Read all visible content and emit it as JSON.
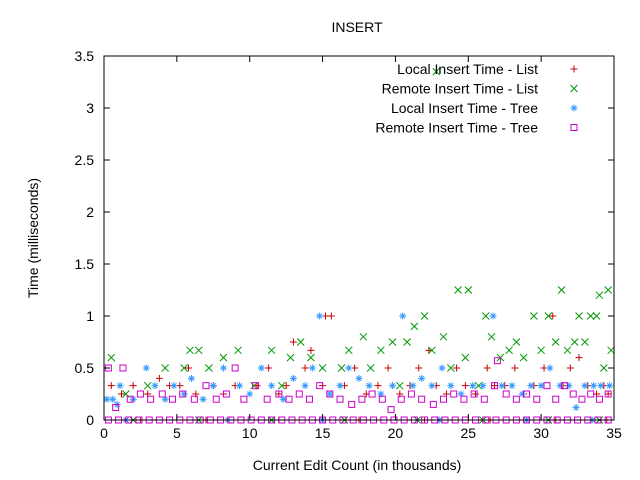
{
  "chart_data": {
    "type": "scatter",
    "title": "INSERT",
    "xlabel": "Current Edit Count (in thousands)",
    "ylabel": "Time (milliseconds)",
    "xlim": [
      0,
      35
    ],
    "ylim": [
      0,
      3.5
    ],
    "x_ticks": [
      "0",
      "5",
      "10",
      "15",
      "20",
      "25",
      "30",
      "35"
    ],
    "y_ticks": [
      "0",
      "0.5",
      "1",
      "1.5",
      "2",
      "2.5",
      "3",
      "3.5"
    ],
    "grid": false,
    "legend_position": "top-right",
    "series": [
      {
        "name": "Local Insert Time - List",
        "marker": "plus",
        "color": "#cc0000",
        "points": [
          [
            0.5,
            0.33
          ],
          [
            1.2,
            0.25
          ],
          [
            2.0,
            0.33
          ],
          [
            3.0,
            0.25
          ],
          [
            3.8,
            0.4
          ],
          [
            4.5,
            0.33
          ],
          [
            5.2,
            0.33
          ],
          [
            5.8,
            0.5
          ],
          [
            6.3,
            0.25
          ],
          [
            7.5,
            0.33
          ],
          [
            8.2,
            0.25
          ],
          [
            9.0,
            0.33
          ],
          [
            10.5,
            0.33
          ],
          [
            11.3,
            0.5
          ],
          [
            12.0,
            0.25
          ],
          [
            12.5,
            0.33
          ],
          [
            13.0,
            0.75
          ],
          [
            13.8,
            0.5
          ],
          [
            14.2,
            0.67
          ],
          [
            15.0,
            0.33
          ],
          [
            15.2,
            1.0
          ],
          [
            15.6,
            1.0
          ],
          [
            16.5,
            0.33
          ],
          [
            17.2,
            0.5
          ],
          [
            18.0,
            0.25
          ],
          [
            18.8,
            0.33
          ],
          [
            19.5,
            0.5
          ],
          [
            20.3,
            0.25
          ],
          [
            21.0,
            0.33
          ],
          [
            21.6,
            0.5
          ],
          [
            22.3,
            0.67
          ],
          [
            22.8,
            0.33
          ],
          [
            23.5,
            0.25
          ],
          [
            24.2,
            0.5
          ],
          [
            24.8,
            0.33
          ],
          [
            25.5,
            0.25
          ],
          [
            26.3,
            0.5
          ],
          [
            26.8,
            0.33
          ],
          [
            27.5,
            0.33
          ],
          [
            28.2,
            0.5
          ],
          [
            28.8,
            0.25
          ],
          [
            29.5,
            0.33
          ],
          [
            30.2,
            0.5
          ],
          [
            30.8,
            1.0
          ],
          [
            31.5,
            0.33
          ],
          [
            32.0,
            0.5
          ],
          [
            32.6,
            0.6
          ],
          [
            33.2,
            0.33
          ],
          [
            33.8,
            0.25
          ],
          [
            34.3,
            0.33
          ],
          [
            34.6,
            0.25
          ],
          [
            2.5,
            0.0
          ],
          [
            7.0,
            0.0
          ],
          [
            12.0,
            0.0
          ],
          [
            17.5,
            0.0
          ],
          [
            22.0,
            0.0
          ],
          [
            26.5,
            0.0
          ],
          [
            31.0,
            0.0
          ],
          [
            34.5,
            0.0
          ]
        ]
      },
      {
        "name": "Remote Insert Time - List",
        "marker": "cross",
        "color": "#009900",
        "points": [
          [
            0.5,
            0.6
          ],
          [
            1.5,
            0.25
          ],
          [
            3.0,
            0.33
          ],
          [
            4.2,
            0.5
          ],
          [
            5.5,
            0.5
          ],
          [
            5.9,
            0.67
          ],
          [
            6.5,
            0.67
          ],
          [
            7.2,
            0.5
          ],
          [
            8.2,
            0.6
          ],
          [
            9.2,
            0.67
          ],
          [
            10.3,
            0.33
          ],
          [
            11.5,
            0.67
          ],
          [
            12.2,
            0.33
          ],
          [
            12.8,
            0.6
          ],
          [
            13.5,
            0.75
          ],
          [
            14.2,
            0.6
          ],
          [
            15.0,
            0.5
          ],
          [
            16.3,
            0.5
          ],
          [
            16.8,
            0.67
          ],
          [
            17.8,
            0.8
          ],
          [
            18.3,
            0.5
          ],
          [
            19.0,
            0.67
          ],
          [
            19.8,
            0.75
          ],
          [
            20.3,
            0.33
          ],
          [
            20.8,
            0.75
          ],
          [
            21.3,
            0.9
          ],
          [
            22.0,
            1.0
          ],
          [
            22.5,
            0.67
          ],
          [
            22.8,
            3.35
          ],
          [
            23.3,
            0.8
          ],
          [
            23.8,
            0.5
          ],
          [
            24.3,
            1.25
          ],
          [
            24.8,
            0.6
          ],
          [
            25.0,
            1.25
          ],
          [
            25.7,
            0.33
          ],
          [
            26.2,
            1.0
          ],
          [
            26.6,
            0.8
          ],
          [
            27.2,
            0.6
          ],
          [
            27.8,
            0.67
          ],
          [
            28.3,
            0.75
          ],
          [
            28.8,
            0.6
          ],
          [
            29.5,
            1.0
          ],
          [
            30.0,
            0.67
          ],
          [
            30.5,
            1.0
          ],
          [
            31.0,
            0.75
          ],
          [
            31.4,
            1.25
          ],
          [
            31.8,
            0.67
          ],
          [
            32.3,
            0.75
          ],
          [
            32.6,
            1.0
          ],
          [
            33.0,
            0.75
          ],
          [
            33.4,
            1.0
          ],
          [
            33.8,
            1.0
          ],
          [
            34.0,
            1.2
          ],
          [
            34.3,
            0.5
          ],
          [
            34.6,
            1.25
          ],
          [
            34.8,
            0.67
          ],
          [
            2.0,
            0.0
          ],
          [
            6.5,
            0.0
          ],
          [
            11.5,
            0.0
          ],
          [
            16.5,
            0.0
          ],
          [
            21.5,
            0.0
          ],
          [
            26.0,
            0.0
          ],
          [
            30.5,
            0.0
          ],
          [
            34.0,
            0.0
          ]
        ]
      },
      {
        "name": "Local Insert Time - Tree",
        "marker": "star",
        "color": "#3399ff",
        "points": [
          [
            0.2,
            0.2
          ],
          [
            0.6,
            0.2
          ],
          [
            0.9,
            0.15
          ],
          [
            1.1,
            0.33
          ],
          [
            2.0,
            0.2
          ],
          [
            2.9,
            0.5
          ],
          [
            3.5,
            0.33
          ],
          [
            4.2,
            0.2
          ],
          [
            4.8,
            0.33
          ],
          [
            5.5,
            0.25
          ],
          [
            6.0,
            0.4
          ],
          [
            6.8,
            0.2
          ],
          [
            7.5,
            0.33
          ],
          [
            8.2,
            0.5
          ],
          [
            9.3,
            0.33
          ],
          [
            10.0,
            0.25
          ],
          [
            10.8,
            0.5
          ],
          [
            11.5,
            0.33
          ],
          [
            12.3,
            0.2
          ],
          [
            13.0,
            0.4
          ],
          [
            13.8,
            0.33
          ],
          [
            14.3,
            0.5
          ],
          [
            14.8,
            1.0
          ],
          [
            15.5,
            0.25
          ],
          [
            16.2,
            0.33
          ],
          [
            16.8,
            0.5
          ],
          [
            17.5,
            0.4
          ],
          [
            18.2,
            0.33
          ],
          [
            19.0,
            0.25
          ],
          [
            19.8,
            0.33
          ],
          [
            20.5,
            1.0
          ],
          [
            21.2,
            0.33
          ],
          [
            21.8,
            0.4
          ],
          [
            22.5,
            0.33
          ],
          [
            23.2,
            0.5
          ],
          [
            23.8,
            0.33
          ],
          [
            24.5,
            0.25
          ],
          [
            25.3,
            0.33
          ],
          [
            26.0,
            0.33
          ],
          [
            26.7,
            1.0
          ],
          [
            27.3,
            0.33
          ],
          [
            28.0,
            0.33
          ],
          [
            28.7,
            0.25
          ],
          [
            29.3,
            0.33
          ],
          [
            30.0,
            0.33
          ],
          [
            30.6,
            0.5
          ],
          [
            31.3,
            0.33
          ],
          [
            31.9,
            0.33
          ],
          [
            32.4,
            0.12
          ],
          [
            33.0,
            0.33
          ],
          [
            33.6,
            0.33
          ],
          [
            34.1,
            0.33
          ],
          [
            34.7,
            0.33
          ],
          [
            1.5,
            0.0
          ],
          [
            8.5,
            0.0
          ],
          [
            15.0,
            0.0
          ],
          [
            23.0,
            0.0
          ],
          [
            29.0,
            0.0
          ],
          [
            33.5,
            0.0
          ]
        ]
      },
      {
        "name": "Remote Insert Time - Tree",
        "marker": "square",
        "color": "#cc00cc",
        "points": [
          [
            0.3,
            0.5
          ],
          [
            0.8,
            0.12
          ],
          [
            1.3,
            0.5
          ],
          [
            1.8,
            0.2
          ],
          [
            2.5,
            0.25
          ],
          [
            3.2,
            0.2
          ],
          [
            4.0,
            0.25
          ],
          [
            4.7,
            0.2
          ],
          [
            5.4,
            0.25
          ],
          [
            6.2,
            0.2
          ],
          [
            7.0,
            0.33
          ],
          [
            7.7,
            0.2
          ],
          [
            8.4,
            0.25
          ],
          [
            9.0,
            0.5
          ],
          [
            9.6,
            0.2
          ],
          [
            10.4,
            0.33
          ],
          [
            11.2,
            0.2
          ],
          [
            12.0,
            0.25
          ],
          [
            12.7,
            0.2
          ],
          [
            13.4,
            0.25
          ],
          [
            14.1,
            0.2
          ],
          [
            14.8,
            0.33
          ],
          [
            15.5,
            0.25
          ],
          [
            16.2,
            0.2
          ],
          [
            17.0,
            0.15
          ],
          [
            17.7,
            0.2
          ],
          [
            18.4,
            0.25
          ],
          [
            19.1,
            0.2
          ],
          [
            19.7,
            0.1
          ],
          [
            20.4,
            0.2
          ],
          [
            21.1,
            0.25
          ],
          [
            21.8,
            0.2
          ],
          [
            22.6,
            0.15
          ],
          [
            23.3,
            0.2
          ],
          [
            24.0,
            0.25
          ],
          [
            24.7,
            0.2
          ],
          [
            25.4,
            0.25
          ],
          [
            26.1,
            0.2
          ],
          [
            26.8,
            0.33
          ],
          [
            27.0,
            0.57
          ],
          [
            27.6,
            0.25
          ],
          [
            28.3,
            0.2
          ],
          [
            29.0,
            0.25
          ],
          [
            29.7,
            0.2
          ],
          [
            30.4,
            0.33
          ],
          [
            31.0,
            0.2
          ],
          [
            31.6,
            0.33
          ],
          [
            32.2,
            0.25
          ],
          [
            32.8,
            0.2
          ],
          [
            33.4,
            0.25
          ],
          [
            34.0,
            0.2
          ],
          [
            34.6,
            0.25
          ],
          [
            0.3,
            0.0
          ],
          [
            1.0,
            0.0
          ],
          [
            1.7,
            0.0
          ],
          [
            2.4,
            0.0
          ],
          [
            3.1,
            0.0
          ],
          [
            3.8,
            0.0
          ],
          [
            4.5,
            0.0
          ],
          [
            5.2,
            0.0
          ],
          [
            5.9,
            0.0
          ],
          [
            6.6,
            0.0
          ],
          [
            7.3,
            0.0
          ],
          [
            8.0,
            0.0
          ],
          [
            8.7,
            0.0
          ],
          [
            9.4,
            0.0
          ],
          [
            10.1,
            0.0
          ],
          [
            10.8,
            0.0
          ],
          [
            11.5,
            0.0
          ],
          [
            12.2,
            0.0
          ],
          [
            12.9,
            0.0
          ],
          [
            13.6,
            0.0
          ],
          [
            14.3,
            0.0
          ],
          [
            15.0,
            0.0
          ],
          [
            15.7,
            0.0
          ],
          [
            16.4,
            0.0
          ],
          [
            17.1,
            0.0
          ],
          [
            17.8,
            0.0
          ],
          [
            18.5,
            0.0
          ],
          [
            19.2,
            0.0
          ],
          [
            19.9,
            0.0
          ],
          [
            20.6,
            0.0
          ],
          [
            21.3,
            0.0
          ],
          [
            22.0,
            0.0
          ],
          [
            22.7,
            0.0
          ],
          [
            23.4,
            0.0
          ],
          [
            24.1,
            0.0
          ],
          [
            24.8,
            0.0
          ],
          [
            25.5,
            0.0
          ],
          [
            26.2,
            0.0
          ],
          [
            26.9,
            0.0
          ],
          [
            27.6,
            0.0
          ],
          [
            28.3,
            0.0
          ],
          [
            29.0,
            0.0
          ],
          [
            29.7,
            0.0
          ],
          [
            30.4,
            0.0
          ],
          [
            31.1,
            0.0
          ],
          [
            31.8,
            0.0
          ],
          [
            32.5,
            0.0
          ],
          [
            33.2,
            0.0
          ],
          [
            33.9,
            0.0
          ],
          [
            34.6,
            0.0
          ]
        ]
      }
    ]
  }
}
